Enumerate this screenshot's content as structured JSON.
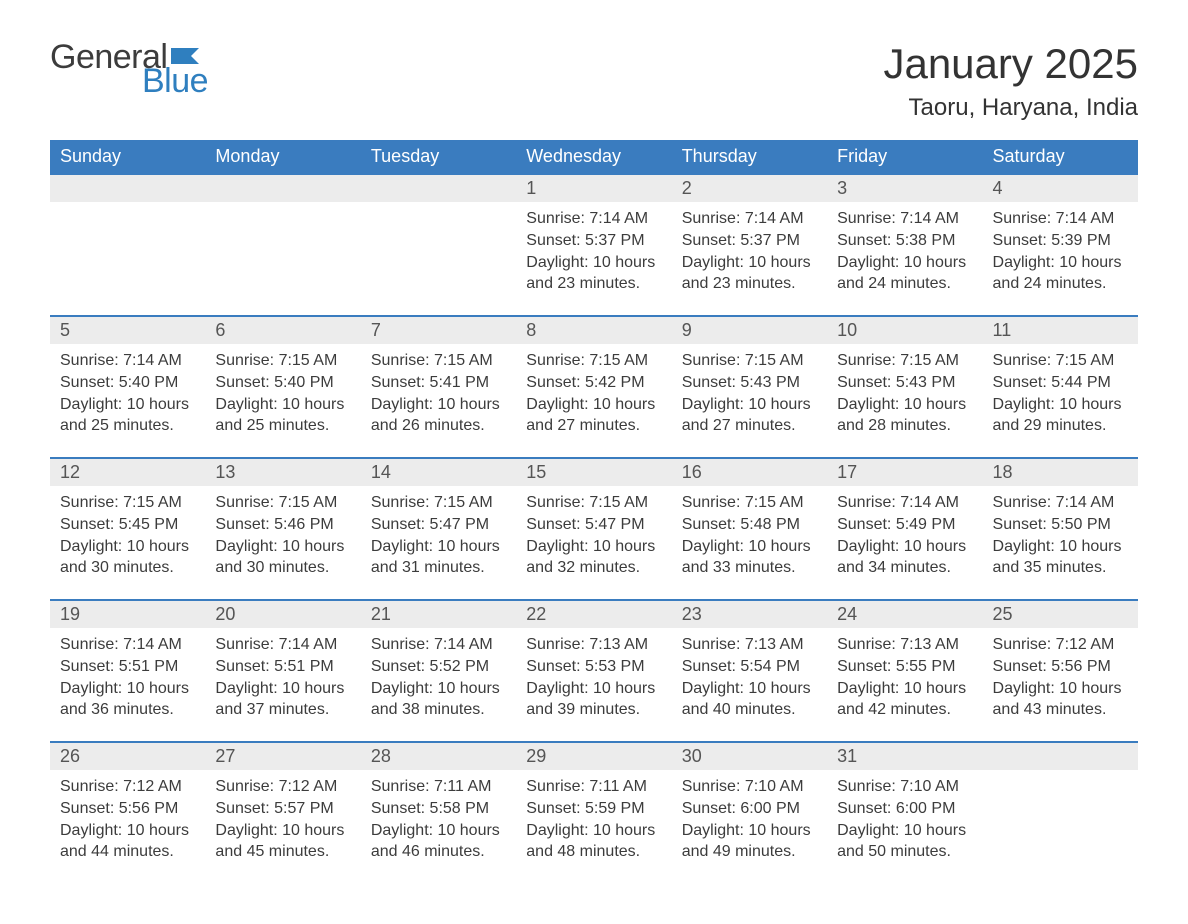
{
  "brand": {
    "general": "General",
    "blue": "Blue",
    "flag_color": "#2f7fbf"
  },
  "title": "January 2025",
  "location": "Taoru, Haryana, India",
  "columns": [
    "Sunday",
    "Monday",
    "Tuesday",
    "Wednesday",
    "Thursday",
    "Friday",
    "Saturday"
  ],
  "colors": {
    "header_bg": "#3a7cbf",
    "header_text": "#ffffff",
    "daynum_bg": "#ececec",
    "row_border": "#3a7cbf",
    "text": "#3c3c3c"
  },
  "weeks": [
    [
      {
        "day": "",
        "sunrise": "",
        "sunset": "",
        "daylight": ""
      },
      {
        "day": "",
        "sunrise": "",
        "sunset": "",
        "daylight": ""
      },
      {
        "day": "",
        "sunrise": "",
        "sunset": "",
        "daylight": ""
      },
      {
        "day": "1",
        "sunrise": "Sunrise: 7:14 AM",
        "sunset": "Sunset: 5:37 PM",
        "daylight": "Daylight: 10 hours and 23 minutes."
      },
      {
        "day": "2",
        "sunrise": "Sunrise: 7:14 AM",
        "sunset": "Sunset: 5:37 PM",
        "daylight": "Daylight: 10 hours and 23 minutes."
      },
      {
        "day": "3",
        "sunrise": "Sunrise: 7:14 AM",
        "sunset": "Sunset: 5:38 PM",
        "daylight": "Daylight: 10 hours and 24 minutes."
      },
      {
        "day": "4",
        "sunrise": "Sunrise: 7:14 AM",
        "sunset": "Sunset: 5:39 PM",
        "daylight": "Daylight: 10 hours and 24 minutes."
      }
    ],
    [
      {
        "day": "5",
        "sunrise": "Sunrise: 7:14 AM",
        "sunset": "Sunset: 5:40 PM",
        "daylight": "Daylight: 10 hours and 25 minutes."
      },
      {
        "day": "6",
        "sunrise": "Sunrise: 7:15 AM",
        "sunset": "Sunset: 5:40 PM",
        "daylight": "Daylight: 10 hours and 25 minutes."
      },
      {
        "day": "7",
        "sunrise": "Sunrise: 7:15 AM",
        "sunset": "Sunset: 5:41 PM",
        "daylight": "Daylight: 10 hours and 26 minutes."
      },
      {
        "day": "8",
        "sunrise": "Sunrise: 7:15 AM",
        "sunset": "Sunset: 5:42 PM",
        "daylight": "Daylight: 10 hours and 27 minutes."
      },
      {
        "day": "9",
        "sunrise": "Sunrise: 7:15 AM",
        "sunset": "Sunset: 5:43 PM",
        "daylight": "Daylight: 10 hours and 27 minutes."
      },
      {
        "day": "10",
        "sunrise": "Sunrise: 7:15 AM",
        "sunset": "Sunset: 5:43 PM",
        "daylight": "Daylight: 10 hours and 28 minutes."
      },
      {
        "day": "11",
        "sunrise": "Sunrise: 7:15 AM",
        "sunset": "Sunset: 5:44 PM",
        "daylight": "Daylight: 10 hours and 29 minutes."
      }
    ],
    [
      {
        "day": "12",
        "sunrise": "Sunrise: 7:15 AM",
        "sunset": "Sunset: 5:45 PM",
        "daylight": "Daylight: 10 hours and 30 minutes."
      },
      {
        "day": "13",
        "sunrise": "Sunrise: 7:15 AM",
        "sunset": "Sunset: 5:46 PM",
        "daylight": "Daylight: 10 hours and 30 minutes."
      },
      {
        "day": "14",
        "sunrise": "Sunrise: 7:15 AM",
        "sunset": "Sunset: 5:47 PM",
        "daylight": "Daylight: 10 hours and 31 minutes."
      },
      {
        "day": "15",
        "sunrise": "Sunrise: 7:15 AM",
        "sunset": "Sunset: 5:47 PM",
        "daylight": "Daylight: 10 hours and 32 minutes."
      },
      {
        "day": "16",
        "sunrise": "Sunrise: 7:15 AM",
        "sunset": "Sunset: 5:48 PM",
        "daylight": "Daylight: 10 hours and 33 minutes."
      },
      {
        "day": "17",
        "sunrise": "Sunrise: 7:14 AM",
        "sunset": "Sunset: 5:49 PM",
        "daylight": "Daylight: 10 hours and 34 minutes."
      },
      {
        "day": "18",
        "sunrise": "Sunrise: 7:14 AM",
        "sunset": "Sunset: 5:50 PM",
        "daylight": "Daylight: 10 hours and 35 minutes."
      }
    ],
    [
      {
        "day": "19",
        "sunrise": "Sunrise: 7:14 AM",
        "sunset": "Sunset: 5:51 PM",
        "daylight": "Daylight: 10 hours and 36 minutes."
      },
      {
        "day": "20",
        "sunrise": "Sunrise: 7:14 AM",
        "sunset": "Sunset: 5:51 PM",
        "daylight": "Daylight: 10 hours and 37 minutes."
      },
      {
        "day": "21",
        "sunrise": "Sunrise: 7:14 AM",
        "sunset": "Sunset: 5:52 PM",
        "daylight": "Daylight: 10 hours and 38 minutes."
      },
      {
        "day": "22",
        "sunrise": "Sunrise: 7:13 AM",
        "sunset": "Sunset: 5:53 PM",
        "daylight": "Daylight: 10 hours and 39 minutes."
      },
      {
        "day": "23",
        "sunrise": "Sunrise: 7:13 AM",
        "sunset": "Sunset: 5:54 PM",
        "daylight": "Daylight: 10 hours and 40 minutes."
      },
      {
        "day": "24",
        "sunrise": "Sunrise: 7:13 AM",
        "sunset": "Sunset: 5:55 PM",
        "daylight": "Daylight: 10 hours and 42 minutes."
      },
      {
        "day": "25",
        "sunrise": "Sunrise: 7:12 AM",
        "sunset": "Sunset: 5:56 PM",
        "daylight": "Daylight: 10 hours and 43 minutes."
      }
    ],
    [
      {
        "day": "26",
        "sunrise": "Sunrise: 7:12 AM",
        "sunset": "Sunset: 5:56 PM",
        "daylight": "Daylight: 10 hours and 44 minutes."
      },
      {
        "day": "27",
        "sunrise": "Sunrise: 7:12 AM",
        "sunset": "Sunset: 5:57 PM",
        "daylight": "Daylight: 10 hours and 45 minutes."
      },
      {
        "day": "28",
        "sunrise": "Sunrise: 7:11 AM",
        "sunset": "Sunset: 5:58 PM",
        "daylight": "Daylight: 10 hours and 46 minutes."
      },
      {
        "day": "29",
        "sunrise": "Sunrise: 7:11 AM",
        "sunset": "Sunset: 5:59 PM",
        "daylight": "Daylight: 10 hours and 48 minutes."
      },
      {
        "day": "30",
        "sunrise": "Sunrise: 7:10 AM",
        "sunset": "Sunset: 6:00 PM",
        "daylight": "Daylight: 10 hours and 49 minutes."
      },
      {
        "day": "31",
        "sunrise": "Sunrise: 7:10 AM",
        "sunset": "Sunset: 6:00 PM",
        "daylight": "Daylight: 10 hours and 50 minutes."
      },
      {
        "day": "",
        "sunrise": "",
        "sunset": "",
        "daylight": ""
      }
    ]
  ]
}
